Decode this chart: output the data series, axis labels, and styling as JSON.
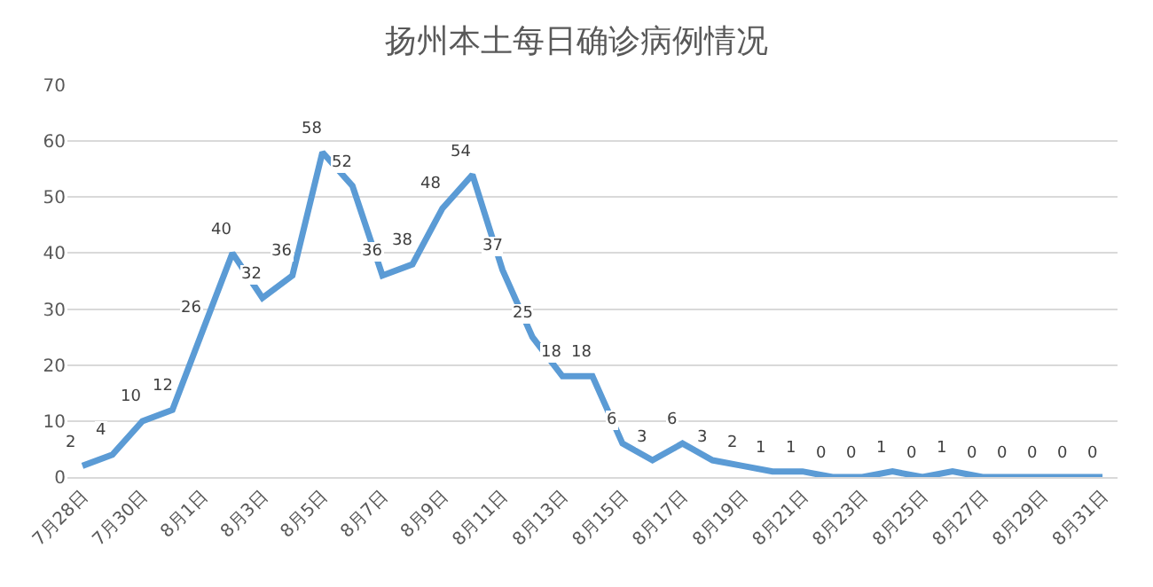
{
  "chart_data": {
    "type": "line",
    "title": "扬州本土每日确诊病例情况",
    "categories": [
      "7月28日",
      null,
      "7月30日",
      null,
      "8月1日",
      null,
      "8月3日",
      null,
      "8月5日",
      null,
      "8月7日",
      null,
      "8月9日",
      null,
      "8月11日",
      null,
      "8月13日",
      null,
      "8月15日",
      null,
      "8月17日",
      null,
      "8月19日",
      null,
      "8月21日",
      null,
      "8月23日",
      null,
      "8月25日",
      null,
      "8月27日",
      null,
      "8月29日",
      null,
      "8月31日"
    ],
    "series": [
      {
        "color": "#5b9bd5",
        "values": [
          2,
          4,
          10,
          12,
          26,
          40,
          32,
          36,
          58,
          52,
          36,
          38,
          48,
          54,
          37,
          25,
          18,
          18,
          6,
          3,
          6,
          3,
          2,
          1,
          1,
          0,
          0,
          1,
          0,
          1,
          0,
          0,
          0,
          0,
          0
        ]
      }
    ],
    "ylim": [
      0,
      70
    ],
    "yticks": [
      0,
      10,
      20,
      30,
      40,
      50,
      60,
      70
    ],
    "grid": "y",
    "data_labels": true,
    "marker": "none",
    "line_style": "solid"
  }
}
